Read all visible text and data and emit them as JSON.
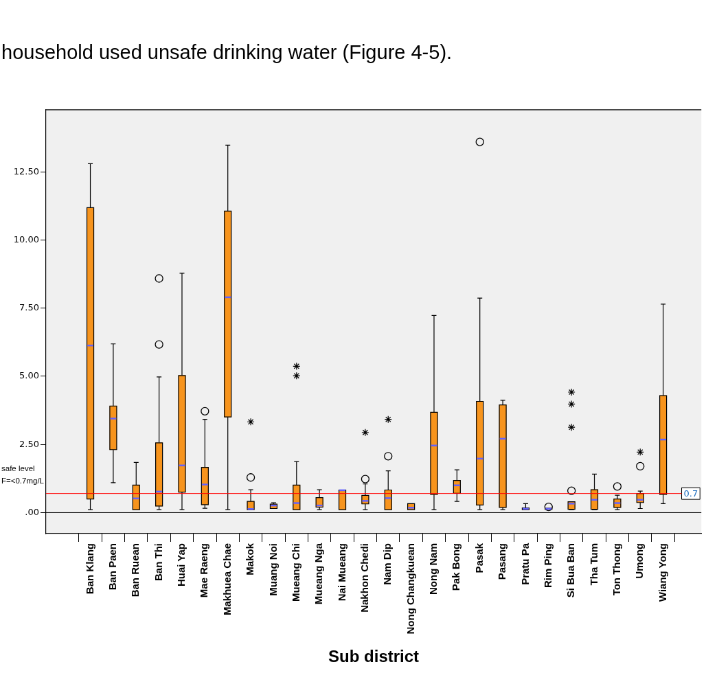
{
  "chart_data": {
    "type": "box",
    "annotations": [
      "household used unsafe drinking water (Figure 4-5).",
      "safe level F=<0.7mg/L"
    ],
    "xlabel": "Sub district",
    "categories": [
      "Ban Klang",
      "Ban Paen",
      "Ban Ruean",
      "Ban Thi",
      "Huai Yap",
      "Mae Raeng",
      "Makhuea Chae",
      "Makok",
      "Muang Noi",
      "Mueang Chi",
      "Mueang Nga",
      "Nai Mueang",
      "Nakhon Chedi",
      "Nam Dip",
      "Nong Changkuean",
      "Nong Nam",
      "Pak Bong",
      "Pasak",
      "Pasang",
      "Pratu Pa",
      "Rim Ping",
      "Si Bua Ban",
      "Tha Tum",
      "Ton Thong",
      "Umong",
      "Wiang Yong"
    ],
    "series": [
      {
        "color": "#f7941d",
        "boxes": [
          {
            "low": 0.11,
            "q1": 0.5,
            "median": 6.13,
            "q3": 11.19,
            "high": 12.8
          },
          {
            "low": 1.1,
            "q1": 2.31,
            "median": 3.45,
            "q3": 3.91,
            "high": 6.19
          },
          {
            "low": 0.11,
            "q1": 0.11,
            "median": 0.52,
            "q3": 1.01,
            "high": 1.84
          },
          {
            "low": 0.11,
            "q1": 0.24,
            "median": 0.77,
            "q3": 2.56,
            "high": 4.98,
            "outliers": [
              6.17,
              8.59
            ]
          },
          {
            "low": 0.11,
            "q1": 0.75,
            "median": 1.73,
            "q3": 5.03,
            "high": 8.78
          },
          {
            "low": 0.16,
            "q1": 0.29,
            "median": 1.03,
            "q3": 1.66,
            "high": 3.42,
            "outliers": [
              3.72
            ]
          },
          {
            "low": 0.11,
            "q1": 3.51,
            "median": 7.9,
            "q3": 11.06,
            "high": 13.48
          },
          {
            "low": 0.11,
            "q1": 0.11,
            "median": 0.13,
            "q3": 0.41,
            "high": 0.84,
            "outliers": [
              1.29
            ]
          },
          {
            "low": 0.15,
            "q1": 0.15,
            "median": 0.26,
            "q3": 0.31,
            "high": 0.36
          },
          {
            "low": 0.11,
            "q1": 0.11,
            "median": 0.35,
            "q3": 1.01,
            "high": 1.87
          },
          {
            "low": 0.11,
            "q1": 0.2,
            "median": 0.26,
            "q3": 0.55,
            "high": 0.84
          },
          {
            "low": 0.11,
            "q1": 0.11,
            "median": 0.82,
            "q3": 0.83,
            "high": 0.83
          },
          {
            "low": 0.11,
            "q1": 0.32,
            "median": 0.43,
            "q3": 0.63,
            "high": 1.05,
            "outliers": [
              1.23
            ]
          },
          {
            "low": 0.11,
            "q1": 0.11,
            "median": 0.53,
            "q3": 0.83,
            "high": 1.53,
            "outliers": [
              2.07
            ]
          },
          {
            "low": 0.11,
            "q1": 0.11,
            "median": 0.18,
            "q3": 0.33,
            "high": 0.33
          },
          {
            "low": 0.11,
            "q1": 0.67,
            "median": 2.46,
            "q3": 3.68,
            "high": 7.23
          },
          {
            "low": 0.41,
            "q1": 0.71,
            "median": 1.0,
            "q3": 1.18,
            "high": 1.57
          },
          {
            "low": 0.11,
            "q1": 0.28,
            "median": 1.98,
            "q3": 4.08,
            "high": 7.87,
            "outliers": [
              13.6
            ]
          },
          {
            "low": 0.11,
            "q1": 0.19,
            "median": 2.71,
            "q3": 3.95,
            "high": 4.12
          },
          {
            "low": 0.11,
            "q1": 0.11,
            "median": 0.14,
            "q3": 0.17,
            "high": 0.33
          },
          {
            "low": 0.12,
            "q1": 0.12,
            "median": 0.14,
            "q3": 0.16,
            "high": 0.16,
            "outliers": [
              0.21
            ]
          },
          {
            "low": 0.11,
            "q1": 0.12,
            "median": 0.33,
            "q3": 0.4,
            "high": 0.4,
            "outliers": [
              0.8
            ]
          },
          {
            "low": 0.11,
            "q1": 0.12,
            "median": 0.47,
            "q3": 0.84,
            "high": 1.41
          },
          {
            "low": 0.11,
            "q1": 0.19,
            "median": 0.35,
            "q3": 0.5,
            "high": 0.64,
            "outliers": [
              0.96
            ]
          },
          {
            "low": 0.15,
            "q1": 0.37,
            "median": 0.47,
            "q3": 0.7,
            "high": 0.79,
            "outliers": [
              1.7
            ]
          },
          {
            "low": 0.33,
            "q1": 0.67,
            "median": 2.68,
            "q3": 4.29,
            "high": 7.65
          }
        ]
      },
      {
        "type": "scatter",
        "marker": "cross",
        "color": "#000000",
        "x": [
          "Makok",
          "Mueang Chi",
          "Mueang Chi",
          "Nakhon Chedi",
          "Nam Dip",
          "Si Bua Ban",
          "Si Bua Ban",
          "Si Bua Ban",
          "Umong"
        ],
        "values": [
          3.33,
          5.37,
          5.02,
          2.94,
          3.42,
          4.42,
          3.98,
          3.13,
          2.22
        ]
      }
    ],
    "ylim": [
      -0.77,
      14.78
    ],
    "yticks": [
      {
        "value": 0,
        "label": ".00"
      },
      {
        "value": 2.5,
        "label": "2.50"
      },
      {
        "value": 5,
        "label": "5.00"
      },
      {
        "value": 7.5,
        "label": "7.50"
      },
      {
        "value": 10,
        "label": "10.00"
      },
      {
        "value": 12.5,
        "label": "12.50"
      }
    ],
    "ref_lines": [
      {
        "axis": "y",
        "value": 0,
        "color": "#000000"
      },
      {
        "axis": "y",
        "value": 0.7,
        "label": "0.7",
        "color": "#ff0000"
      }
    ]
  }
}
